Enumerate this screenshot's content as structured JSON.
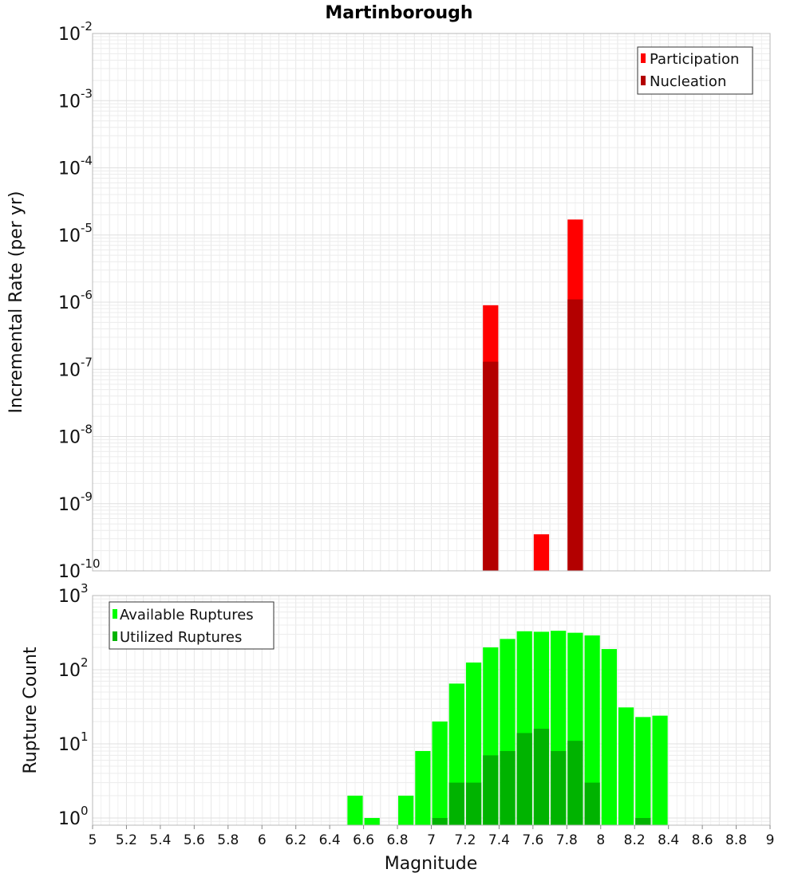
{
  "chart_data": [
    {
      "type": "bar",
      "title": "Martinborough",
      "xlabel": "Magnitude",
      "ylabel": "Incremental Rate (per yr)",
      "yscale": "log",
      "ylim": [
        1e-10,
        0.01
      ],
      "xlim": [
        5,
        9
      ],
      "bin_width": 0.1,
      "grid": true,
      "legend_position": "top-right",
      "series": [
        {
          "name": "Participation",
          "color": "#ff0000",
          "points": [
            {
              "x": 7.35,
              "y": 9e-07
            },
            {
              "x": 7.65,
              "y": 3.5e-10
            },
            {
              "x": 7.85,
              "y": 1.7e-05
            }
          ]
        },
        {
          "name": "Nucleation",
          "color": "#b30000",
          "points": [
            {
              "x": 7.35,
              "y": 1.3e-07
            },
            {
              "x": 7.85,
              "y": 1.1e-06
            }
          ]
        }
      ]
    },
    {
      "type": "bar",
      "xlabel": "Magnitude",
      "ylabel": "Rupture Count",
      "yscale": "log",
      "ylim": [
        0.8,
        1000
      ],
      "xlim": [
        5,
        9
      ],
      "bin_width": 0.1,
      "grid": true,
      "legend_position": "top-left",
      "series": [
        {
          "name": "Available Ruptures",
          "color": "#00ff00",
          "points": [
            {
              "x": 6.55,
              "y": 2
            },
            {
              "x": 6.65,
              "y": 1
            },
            {
              "x": 6.85,
              "y": 2
            },
            {
              "x": 6.95,
              "y": 8
            },
            {
              "x": 7.05,
              "y": 20
            },
            {
              "x": 7.15,
              "y": 65
            },
            {
              "x": 7.25,
              "y": 125
            },
            {
              "x": 7.35,
              "y": 200
            },
            {
              "x": 7.45,
              "y": 260
            },
            {
              "x": 7.55,
              "y": 330
            },
            {
              "x": 7.65,
              "y": 325
            },
            {
              "x": 7.75,
              "y": 335
            },
            {
              "x": 7.85,
              "y": 315
            },
            {
              "x": 7.95,
              "y": 290
            },
            {
              "x": 8.05,
              "y": 190
            },
            {
              "x": 8.15,
              "y": 31
            },
            {
              "x": 8.25,
              "y": 23
            },
            {
              "x": 8.35,
              "y": 24
            }
          ]
        },
        {
          "name": "Utilized Ruptures",
          "color": "#00b300",
          "points": [
            {
              "x": 7.05,
              "y": 1
            },
            {
              "x": 7.15,
              "y": 3
            },
            {
              "x": 7.25,
              "y": 3
            },
            {
              "x": 7.35,
              "y": 7
            },
            {
              "x": 7.45,
              "y": 8
            },
            {
              "x": 7.55,
              "y": 14
            },
            {
              "x": 7.65,
              "y": 16
            },
            {
              "x": 7.75,
              "y": 8
            },
            {
              "x": 7.85,
              "y": 11
            },
            {
              "x": 7.95,
              "y": 3
            },
            {
              "x": 8.25,
              "y": 1
            }
          ]
        }
      ]
    }
  ],
  "x_ticks": [
    "5",
    "5.2",
    "5.4",
    "5.6",
    "5.8",
    "6",
    "6.2",
    "6.4",
    "6.6",
    "6.8",
    "7",
    "7.2",
    "7.4",
    "7.6",
    "7.8",
    "8",
    "8.2",
    "8.4",
    "8.6",
    "8.8",
    "9"
  ],
  "top_y_ticks": [
    {
      "base": "10",
      "exp": "-2"
    },
    {
      "base": "10",
      "exp": "-3"
    },
    {
      "base": "10",
      "exp": "-4"
    },
    {
      "base": "10",
      "exp": "-5"
    },
    {
      "base": "10",
      "exp": "-6"
    },
    {
      "base": "10",
      "exp": "-7"
    },
    {
      "base": "10",
      "exp": "-8"
    },
    {
      "base": "10",
      "exp": "-9"
    },
    {
      "base": "10",
      "exp": "-10"
    }
  ],
  "bottom_y_ticks": [
    {
      "base": "10",
      "exp": "3"
    },
    {
      "base": "10",
      "exp": "2"
    },
    {
      "base": "10",
      "exp": "1"
    },
    {
      "base": "10",
      "exp": "0"
    }
  ]
}
